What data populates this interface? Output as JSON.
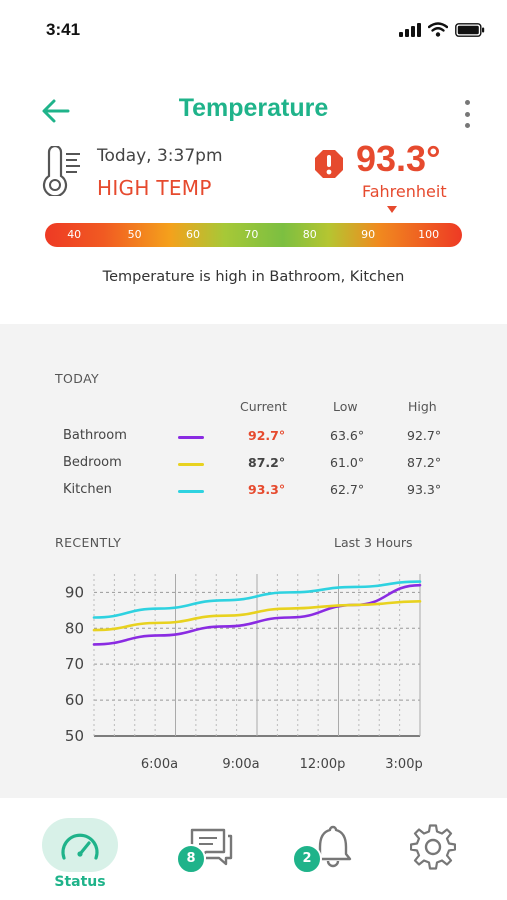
{
  "status_bar": {
    "time": "3:41"
  },
  "header": {
    "title": "Temperature"
  },
  "summary": {
    "date": "Today, 3:37pm",
    "status": "HIGH TEMP",
    "temperature": "93.3°",
    "unit": "Fahrenheit"
  },
  "scale": {
    "ticks": [
      "40",
      "50",
      "60",
      "70",
      "80",
      "90",
      "100"
    ]
  },
  "message": "Temperature is high in Bathroom, Kitchen",
  "today": {
    "heading": "TODAY",
    "columns": [
      "Current",
      "Low",
      "High"
    ],
    "rows": [
      {
        "name": "Bathroom",
        "color": "#8a2be2",
        "current": "92.7°",
        "low": "63.6°",
        "high": "92.7°",
        "alert": true
      },
      {
        "name": "Bedroom",
        "color": "#e8d21f",
        "current": "87.2°",
        "low": "61.0°",
        "high": "87.2°",
        "alert": false
      },
      {
        "name": "Kitchen",
        "color": "#2ed2e0",
        "current": "93.3°",
        "low": "62.7°",
        "high": "93.3°",
        "alert": true
      }
    ]
  },
  "recently": {
    "heading": "RECENTLY",
    "range": "Last 3 Hours"
  },
  "chart_data": {
    "type": "line",
    "x_ticks": [
      "6:00a",
      "9:00a",
      "12:00p",
      "3:00p"
    ],
    "y_ticks": [
      50,
      60,
      70,
      80,
      90
    ],
    "ylim": [
      50,
      94
    ],
    "xlim": [
      0,
      4
    ],
    "grid": true,
    "x": [
      0,
      0.8,
      1.6,
      2.4,
      3.2,
      4
    ],
    "series": [
      {
        "color": "#8a2be2",
        "values": [
          75.5,
          78.0,
          80.5,
          83.0,
          86.5,
          92.0
        ]
      },
      {
        "color": "#e8d21f",
        "values": [
          79.5,
          81.5,
          83.5,
          85.5,
          86.5,
          87.5
        ]
      },
      {
        "color": "#2ed2e0",
        "values": [
          83.0,
          85.5,
          87.8,
          90.0,
          91.5,
          93.0
        ]
      }
    ]
  },
  "nav": {
    "status_label": "Status",
    "messages_badge": "8",
    "alerts_badge": "2"
  },
  "colors": {
    "accent": "#1fb38a",
    "alert": "#e64a2e"
  }
}
